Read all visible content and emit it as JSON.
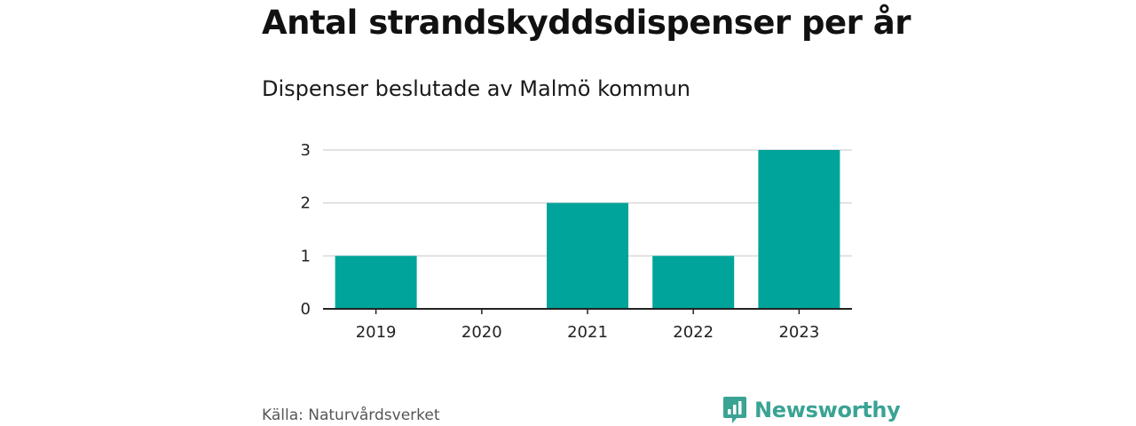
{
  "header": {
    "title": "Antal strandskyddsdispenser per år",
    "subtitle": "Dispenser beslutade av Malmö kommun"
  },
  "footer": {
    "source": "Källa: Naturvårdsverket",
    "brand": "Newsworthy",
    "brand_icon": "bar-chart-speech-bubble-icon"
  },
  "colors": {
    "bar": "#00a49a",
    "grid": "#d9d9d9",
    "axis": "#222222",
    "brand": "#3aa394"
  },
  "chart_data": {
    "type": "bar",
    "categories": [
      "2019",
      "2020",
      "2021",
      "2022",
      "2023"
    ],
    "values": [
      1,
      0,
      2,
      1,
      3
    ],
    "title": "Antal strandskyddsdispenser per år",
    "subtitle": "Dispenser beslutade av Malmö kommun",
    "xlabel": "",
    "ylabel": "",
    "ylim": [
      0,
      3
    ],
    "yticks": [
      0,
      1,
      2,
      3
    ],
    "grid": true,
    "legend": "none"
  }
}
